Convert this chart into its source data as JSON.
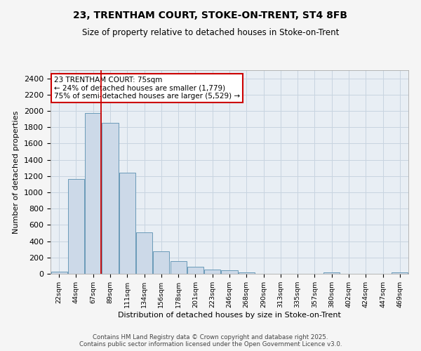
{
  "title_line1": "23, TRENTHAM COURT, STOKE-ON-TRENT, ST4 8FB",
  "title_line2": "Size of property relative to detached houses in Stoke-on-Trent",
  "xlabel": "Distribution of detached houses by size in Stoke-on-Trent",
  "ylabel": "Number of detached properties",
  "categories": [
    "22sqm",
    "44sqm",
    "67sqm",
    "89sqm",
    "111sqm",
    "134sqm",
    "156sqm",
    "178sqm",
    "201sqm",
    "223sqm",
    "246sqm",
    "268sqm",
    "290sqm",
    "313sqm",
    "335sqm",
    "357sqm",
    "380sqm",
    "402sqm",
    "424sqm",
    "447sqm",
    "469sqm"
  ],
  "values": [
    30,
    1165,
    1970,
    1850,
    1245,
    510,
    275,
    155,
    90,
    50,
    40,
    20,
    0,
    0,
    0,
    0,
    20,
    0,
    0,
    0,
    20
  ],
  "bar_color": "#ccd9e8",
  "bar_edge_color": "#6a9ab8",
  "grid_color": "#c8d4e0",
  "vline_color": "#cc0000",
  "vline_x_index": 2,
  "annotation_text": "23 TRENTHAM COURT: 75sqm\n← 24% of detached houses are smaller (1,779)\n75% of semi-detached houses are larger (5,529) →",
  "annotation_box_color": "#ffffff",
  "annotation_box_edge": "#cc0000",
  "ylim": [
    0,
    2500
  ],
  "yticks": [
    0,
    200,
    400,
    600,
    800,
    1000,
    1200,
    1400,
    1600,
    1800,
    2000,
    2200,
    2400
  ],
  "footer_line1": "Contains HM Land Registry data © Crown copyright and database right 2025.",
  "footer_line2": "Contains public sector information licensed under the Open Government Licence v3.0.",
  "bg_color": "#f5f5f5",
  "plot_bg_color": "#e8eef4"
}
